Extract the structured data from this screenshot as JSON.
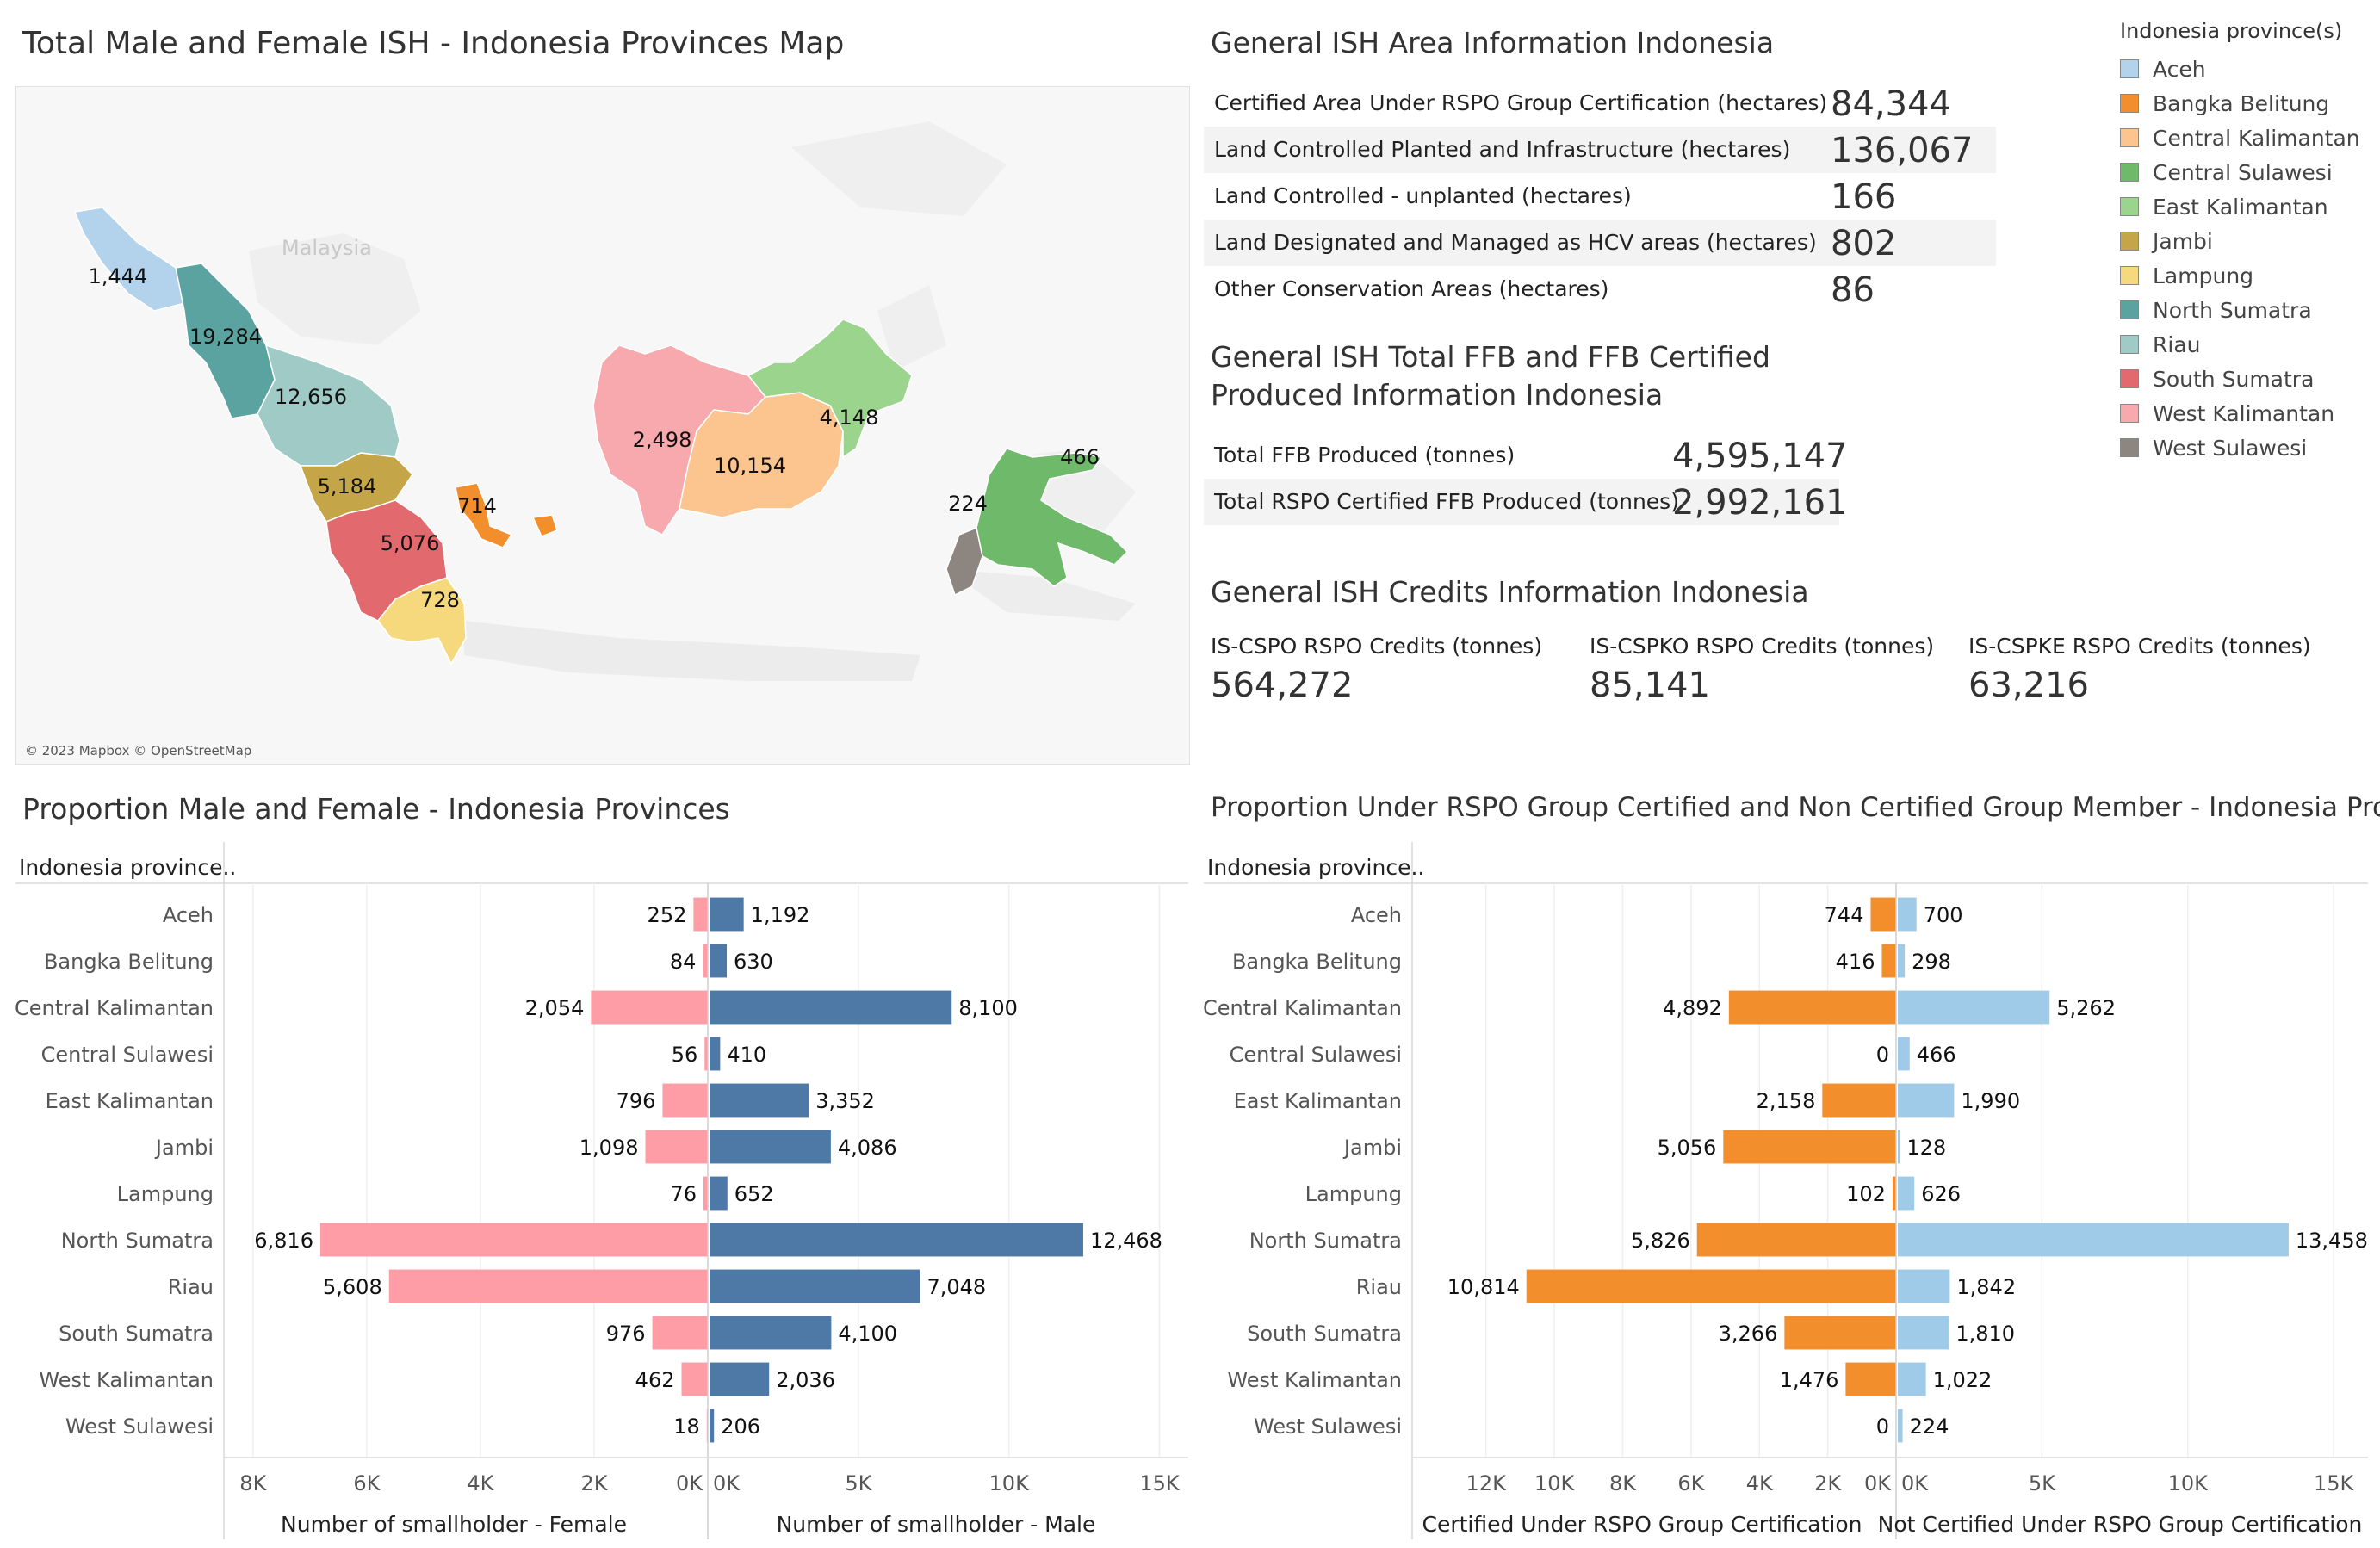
{
  "map": {
    "title": "Total Male and Female ISH - Indonesia Provinces Map",
    "country_label": "Malaysia",
    "attribution": "© 2023 Mapbox © OpenStreetMap",
    "regions": [
      {
        "province": "Aceh",
        "value": "1,444",
        "color": "#b3d2ec"
      },
      {
        "province": "North Sumatra",
        "value": "19,284",
        "color": "#5ba3a0"
      },
      {
        "province": "Riau",
        "value": "12,656",
        "color": "#9fcac6"
      },
      {
        "province": "Jambi",
        "value": "5,184",
        "color": "#c4a649"
      },
      {
        "province": "South Sumatra",
        "value": "5,076",
        "color": "#e26a6e"
      },
      {
        "province": "Lampung",
        "value": "728",
        "color": "#f6d97c"
      },
      {
        "province": "Bangka Belitung",
        "value": "714",
        "color": "#f28e2b"
      },
      {
        "province": "West Kalimantan",
        "value": "2,498",
        "color": "#f8a9ad"
      },
      {
        "province": "Central Kalimantan",
        "value": "10,154",
        "color": "#fcc590"
      },
      {
        "province": "East Kalimantan",
        "value": "4,148",
        "color": "#9bd48d"
      },
      {
        "province": "West Sulawesi",
        "value": "224",
        "color": "#8c8580"
      },
      {
        "province": "Central Sulawesi",
        "value": "466",
        "color": "#6fb96a"
      }
    ]
  },
  "area_info": {
    "title": "General ISH Area Information Indonesia",
    "rows": [
      {
        "label": "Certified Area Under RSPO Group Certification (hectares)",
        "value": "84,344"
      },
      {
        "label": "Land Controlled Planted and Infrastructure (hectares)",
        "value": "136,067"
      },
      {
        "label": "Land Controlled - unplanted (hectares)",
        "value": "166"
      },
      {
        "label": "Land Designated and Managed as HCV areas (hectares)",
        "value": "802"
      },
      {
        "label": "Other Conservation Areas (hectares)",
        "value": "86"
      }
    ]
  },
  "ffb_info": {
    "title_line1": "General ISH Total FFB and FFB Certified",
    "title_line2": "Produced Information Indonesia",
    "rows": [
      {
        "label": "Total FFB Produced (tonnes)",
        "value": "4,595,147"
      },
      {
        "label": "Total RSPO Certified FFB Produced (tonnes)",
        "value": "2,992,161"
      }
    ]
  },
  "credits_info": {
    "title": "General ISH Credits Information Indonesia",
    "items": [
      {
        "label": "IS-CSPO RSPO Credits (tonnes)",
        "value": "564,272"
      },
      {
        "label": "IS-CSPKO RSPO Credits (tonnes)",
        "value": "85,141"
      },
      {
        "label": "IS-CSPKE RSPO Credits (tonnes)",
        "value": "63,216"
      }
    ]
  },
  "legend": {
    "title": "Indonesia province(s)",
    "items": [
      {
        "label": "Aceh",
        "color": "#b3d2ec"
      },
      {
        "label": "Bangka Belitung",
        "color": "#f28e2b"
      },
      {
        "label": "Central Kalimantan",
        "color": "#fcc590"
      },
      {
        "label": "Central Sulawesi",
        "color": "#6fb96a"
      },
      {
        "label": "East Kalimantan",
        "color": "#9bd48d"
      },
      {
        "label": "Jambi",
        "color": "#c4a649"
      },
      {
        "label": "Lampung",
        "color": "#f6d97c"
      },
      {
        "label": "North Sumatra",
        "color": "#5ba3a0"
      },
      {
        "label": "Riau",
        "color": "#9fcac6"
      },
      {
        "label": "South Sumatra",
        "color": "#e26a6e"
      },
      {
        "label": "West Kalimantan",
        "color": "#f8a9ad"
      },
      {
        "label": "West Sulawesi",
        "color": "#8c8580"
      }
    ]
  },
  "chart_data": [
    {
      "type": "bar",
      "title": "Proportion Male and Female - Indonesia Provinces",
      "row_header": "Indonesia province..",
      "categories": [
        "Aceh",
        "Bangka Belitung",
        "Central Kalimantan",
        "Central Sulawesi",
        "East Kalimantan",
        "Jambi",
        "Lampung",
        "North Sumatra",
        "Riau",
        "South Sumatra",
        "West Kalimantan",
        "West Sulawesi"
      ],
      "left": {
        "name": "Number of smallholder - Female",
        "color": "#ff9da7",
        "values": [
          252,
          84,
          2054,
          56,
          796,
          1098,
          76,
          6816,
          5608,
          976,
          462,
          18
        ],
        "labels": [
          "252",
          "84",
          "2,054",
          "56",
          "796",
          "1,098",
          "76",
          "6,816",
          "5,608",
          "976",
          "462",
          "18"
        ],
        "ticks": [
          8000,
          6000,
          4000,
          2000,
          0
        ],
        "tick_labels": [
          "8K",
          "6K",
          "4K",
          "2K",
          "0K"
        ],
        "xlim": [
          0,
          8300
        ]
      },
      "right": {
        "name": "Number of smallholder - Male",
        "color": "#4e79a7",
        "values": [
          1192,
          630,
          8100,
          410,
          3352,
          4086,
          652,
          12468,
          7048,
          4100,
          2036,
          206
        ],
        "labels": [
          "1,192",
          "630",
          "8,100",
          "410",
          "3,352",
          "4,086",
          "652",
          "12,468",
          "7,048",
          "4,100",
          "2,036",
          "206"
        ],
        "ticks": [
          0,
          5000,
          10000,
          15000
        ],
        "tick_labels": [
          "0K",
          "5K",
          "10K",
          "15K"
        ],
        "xlim": [
          0,
          15500
        ]
      }
    },
    {
      "type": "bar",
      "title": "Proportion Under RSPO Group Certified and Non Certified Group Member - Indonesia Provinces",
      "row_header": "Indonesia province..",
      "categories": [
        "Aceh",
        "Bangka Belitung",
        "Central Kalimantan",
        "Central Sulawesi",
        "East Kalimantan",
        "Jambi",
        "Lampung",
        "North Sumatra",
        "Riau",
        "South Sumatra",
        "West Kalimantan",
        "West Sulawesi"
      ],
      "left": {
        "name": "Certified Under RSPO Group Certification",
        "color": "#f28e2b",
        "values": [
          744,
          416,
          4892,
          0,
          2158,
          5056,
          102,
          5826,
          10814,
          3266,
          1476,
          0
        ],
        "labels": [
          "744",
          "416",
          "4,892",
          "0",
          "2,158",
          "5,056",
          "102",
          "5,826",
          "10,814",
          "3,266",
          "1,476",
          "0"
        ],
        "ticks": [
          12000,
          10000,
          8000,
          6000,
          4000,
          2000,
          0
        ],
        "tick_labels": [
          "12K",
          "10K",
          "8K",
          "6K",
          "4K",
          "2K",
          "0K"
        ],
        "xlim": [
          0,
          13000
        ]
      },
      "right": {
        "name": "Not Certified Under RSPO Group Certification",
        "color": "#a0cbe8",
        "values": [
          700,
          298,
          5262,
          466,
          1990,
          128,
          626,
          13458,
          1842,
          1810,
          1022,
          224
        ],
        "labels": [
          "700",
          "298",
          "5,262",
          "466",
          "1,990",
          "128",
          "626",
          "13,458",
          "1,842",
          "1,810",
          "1,022",
          "224"
        ],
        "ticks": [
          0,
          5000,
          10000,
          15000
        ],
        "tick_labels": [
          "0K",
          "5K",
          "10K",
          "15K"
        ],
        "xlim": [
          0,
          16000
        ]
      }
    }
  ]
}
